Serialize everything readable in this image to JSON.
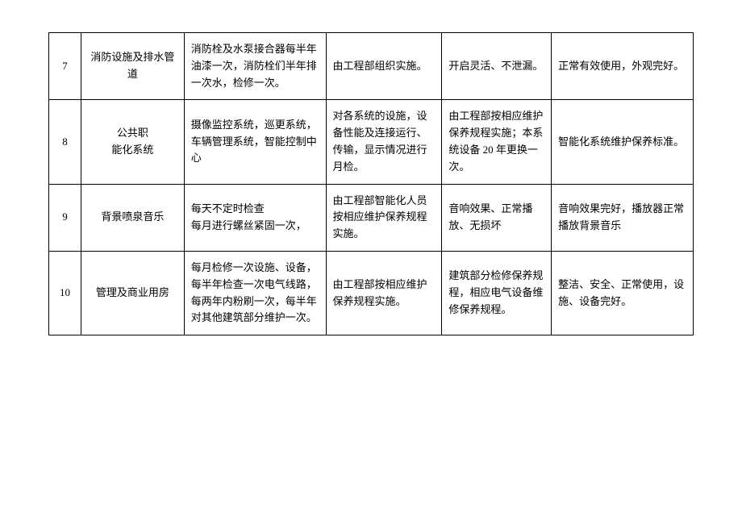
{
  "table": {
    "rows": [
      {
        "num": "7",
        "name": "消防设施及排水管道",
        "c3": "消防栓及水泵接合器每半年油漆一次，消防栓们半年排一次水，检修一次。",
        "c4": "由工程部组织实施。",
        "c5": "开启灵活、不泄漏。",
        "c6": "正常有效使用，外观完好。"
      },
      {
        "num": "8",
        "name": "公共职\n能化系统",
        "c3": "摄像监控系统，巡更系统，车辆管理系统，智能控制中心",
        "c4": "对各系统的设施，设备性能及连接运行、传输，显示情况进行月检。",
        "c5": "由工程部按相应维护保养规程实施；本系统设备 20 年更换一次。",
        "c6": "智能化系统维护保养标准。"
      },
      {
        "num": "9",
        "name": "背景喷泉音乐",
        "c3": "每天不定时检查\n每月进行螺丝紧固一次，",
        "c4": "由工程部智能化人员按相应维护保养规程实施。",
        "c5": "音响效果、正常播放、无损坏",
        "c6": "音响效果完好，播放器正常播放背景音乐"
      },
      {
        "num": "10",
        "name": "管理及商业用房",
        "c3": "每月检修一次设施、设备，每半年检查一次电气线路，每两年内粉刷一次，每半年对其他建筑部分维护一次。",
        "c4": "由工程部按相应维护保养规程实施。",
        "c5": "建筑部分检修保养规程，相应电气设备维修保养规程。",
        "c6": "整洁、安全、正常使用，设施、设备完好。"
      }
    ]
  },
  "styling": {
    "border_color": "#000000",
    "background_color": "#ffffff",
    "text_color": "#000000",
    "font_size": 13,
    "col_widths_percent": [
      5,
      16,
      22,
      18,
      17,
      22
    ]
  }
}
